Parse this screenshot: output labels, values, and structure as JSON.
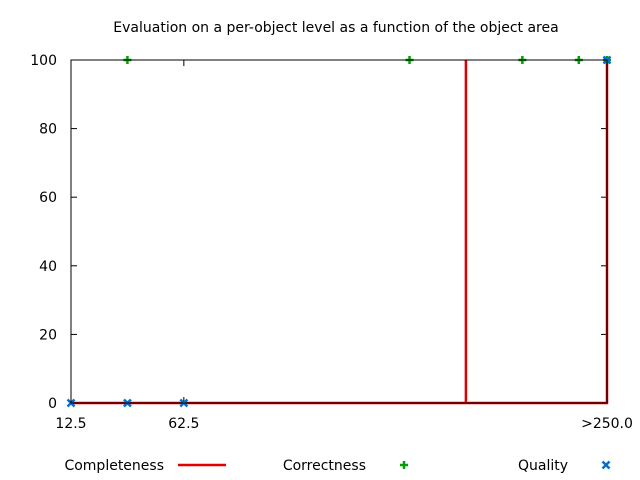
{
  "chart_data": {
    "type": "scatter",
    "title": "Evaluation on a per-object level as a function of the object area",
    "xlabel": "",
    "ylabel": "",
    "xlim": [
      12.5,
      250
    ],
    "ylim": [
      0,
      100
    ],
    "x_ticks": [
      {
        "value": 12.5,
        "label": "12.5"
      },
      {
        "value": 62.5,
        "label": "62.5"
      },
      {
        "value": 250,
        "label": ">250.0"
      }
    ],
    "y_ticks": [
      {
        "value": 0,
        "label": "0"
      },
      {
        "value": 20,
        "label": "20"
      },
      {
        "value": 40,
        "label": "40"
      },
      {
        "value": 60,
        "label": "60"
      },
      {
        "value": 80,
        "label": "80"
      },
      {
        "value": 100,
        "label": "100"
      }
    ],
    "grid": false,
    "legend_position": "bottom",
    "series": [
      {
        "name": "Completeness",
        "style": "line",
        "color": "#e00000",
        "points": [
          {
            "x": 12.5,
            "y": 0
          },
          {
            "x": 37.5,
            "y": 0
          },
          {
            "x": 62.5,
            "y": 0
          },
          {
            "x": 187.5,
            "y": 0
          },
          {
            "x": 187.5,
            "y": 100
          },
          {
            "x": 187.5,
            "y": 0
          },
          {
            "x": 250,
            "y": 0
          },
          {
            "x": 250,
            "y": 100
          }
        ]
      },
      {
        "name": "Correctness",
        "style": "plus",
        "color": "#00a000",
        "points": [
          {
            "x": 37.5,
            "y": 100
          },
          {
            "x": 162.5,
            "y": 100
          },
          {
            "x": 212.5,
            "y": 100
          },
          {
            "x": 237.5,
            "y": 100
          },
          {
            "x": 250,
            "y": 100
          }
        ]
      },
      {
        "name": "Quality",
        "style": "cross",
        "color": "#0070d0",
        "points": [
          {
            "x": 12.5,
            "y": 0
          },
          {
            "x": 37.5,
            "y": 0
          },
          {
            "x": 62.5,
            "y": 0
          },
          {
            "x": 250,
            "y": 100
          }
        ]
      }
    ]
  }
}
